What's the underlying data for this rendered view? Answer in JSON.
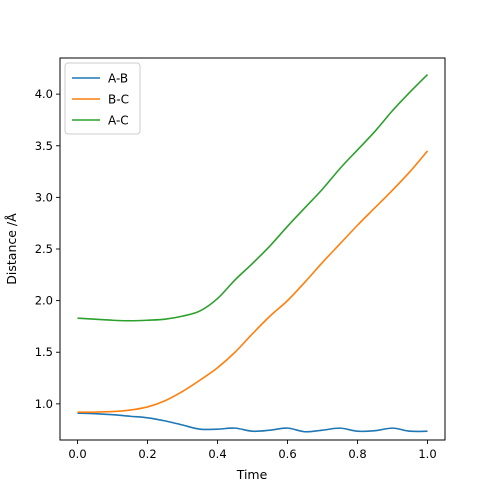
{
  "chart_data": {
    "type": "line",
    "xlabel": "Time",
    "ylabel": "Distance /Å",
    "xlim": [
      -0.05,
      1.05
    ],
    "ylim": [
      0.65,
      4.35
    ],
    "xticks": [
      0.0,
      0.2,
      0.4,
      0.6,
      0.8,
      1.0
    ],
    "xtick_labels": [
      "0.0",
      "0.2",
      "0.4",
      "0.6",
      "0.8",
      "1.0"
    ],
    "yticks": [
      1.0,
      1.5,
      2.0,
      2.5,
      3.0,
      3.5,
      4.0
    ],
    "ytick_labels": [
      "1.0",
      "1.5",
      "2.0",
      "2.5",
      "3.0",
      "3.5",
      "4.0"
    ],
    "grid": false,
    "legend": "upper-left",
    "x": [
      0.0,
      0.05,
      0.1,
      0.15,
      0.2,
      0.25,
      0.3,
      0.35,
      0.4,
      0.45,
      0.5,
      0.55,
      0.6,
      0.65,
      0.7,
      0.75,
      0.8,
      0.85,
      0.9,
      0.95,
      1.0
    ],
    "series": [
      {
        "name": "A-B",
        "color": "#1f77b4",
        "values": [
          0.91,
          0.905,
          0.895,
          0.88,
          0.865,
          0.835,
          0.795,
          0.755,
          0.755,
          0.765,
          0.735,
          0.745,
          0.765,
          0.73,
          0.745,
          0.765,
          0.735,
          0.74,
          0.765,
          0.735,
          0.735
        ]
      },
      {
        "name": "B-C",
        "color": "#ff7f0e",
        "values": [
          0.92,
          0.92,
          0.925,
          0.94,
          0.97,
          1.03,
          1.12,
          1.23,
          1.35,
          1.5,
          1.68,
          1.85,
          2.0,
          2.18,
          2.37,
          2.55,
          2.73,
          2.9,
          3.07,
          3.25,
          3.45
        ]
      },
      {
        "name": "A-C",
        "color": "#2ca02c",
        "values": [
          1.83,
          1.82,
          1.81,
          1.805,
          1.81,
          1.82,
          1.85,
          1.9,
          2.02,
          2.2,
          2.36,
          2.53,
          2.72,
          2.9,
          3.08,
          3.28,
          3.46,
          3.64,
          3.84,
          4.02,
          4.19
        ]
      }
    ]
  }
}
